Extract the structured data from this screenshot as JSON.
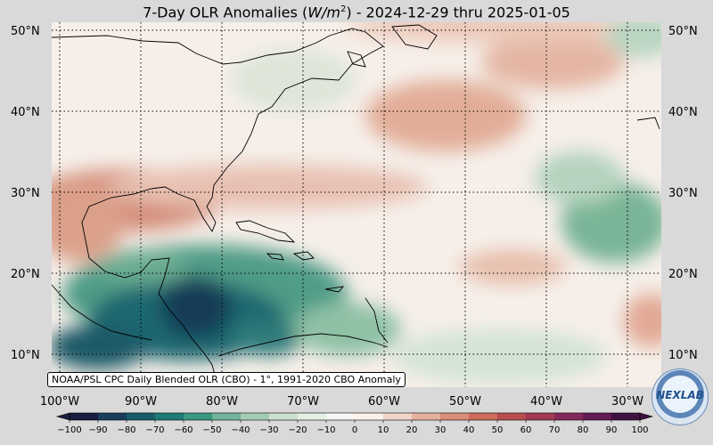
{
  "title": {
    "prefix": "7-Day OLR Anomalies (",
    "unit_main": "W/m",
    "unit_exp": "2",
    "suffix": ") - 2024-12-29 thru 2025-01-05"
  },
  "lat_labels": [
    "50°N",
    "40°N",
    "30°N",
    "20°N",
    "10°N"
  ],
  "lon_labels": [
    "100°W",
    "90°W",
    "80°W",
    "70°W",
    "60°W",
    "50°W",
    "40°W",
    "30°W"
  ],
  "colorbar": {
    "ticks": [
      "−100",
      "−90",
      "−80",
      "−70",
      "−60",
      "−50",
      "−40",
      "−30",
      "−20",
      "−10",
      "0",
      "10",
      "20",
      "30",
      "40",
      "50",
      "60",
      "70",
      "80",
      "90",
      "100"
    ],
    "colors": [
      "#1a1d40",
      "#193e5c",
      "#165e6a",
      "#1e7a76",
      "#3a9880",
      "#73b59a",
      "#a5cdb3",
      "#cde1d0",
      "#e6efe6",
      "#f6f8f3",
      "#faf0ec",
      "#f1d4c8",
      "#e5b19e",
      "#d98e7a",
      "#cc6c5b",
      "#b84d50",
      "#a13a56",
      "#85295a",
      "#641a52",
      "#3f1140"
    ]
  },
  "credit": "NOAA/PSL CPC Daily Blended OLR (CBO) - 1°, 1991-2020 CBO Anomaly",
  "logo_text": "NEXLAB"
}
